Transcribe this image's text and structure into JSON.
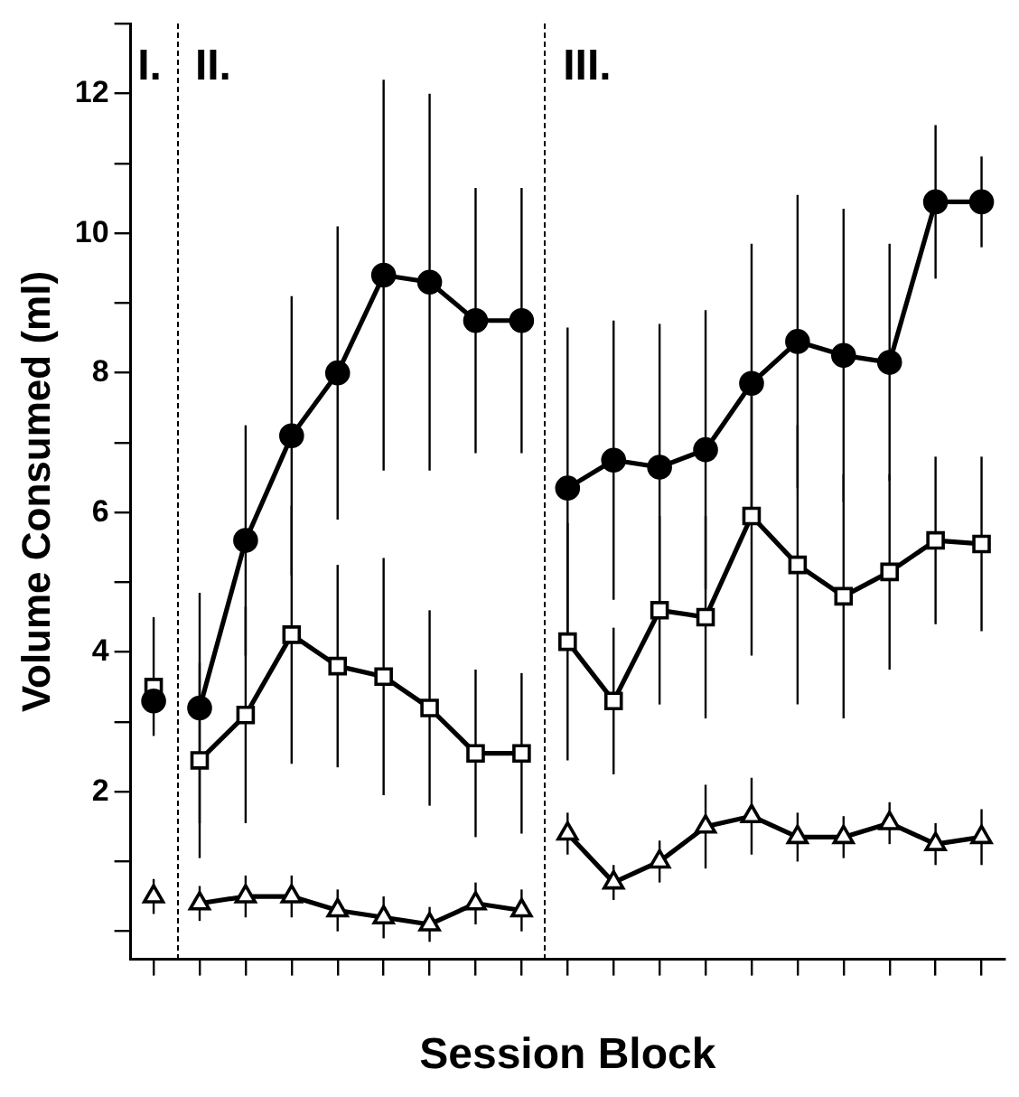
{
  "chart_data": {
    "type": "line",
    "xlabel": "Session Block",
    "ylabel": "Volume Consumed (ml)",
    "categories": [
      null,
      null,
      null,
      null,
      null,
      null,
      null,
      null,
      null,
      null,
      null,
      null,
      null,
      null,
      null,
      null,
      null,
      null,
      null
    ],
    "ylim": [
      -0.4,
      13
    ],
    "yticks": [
      {
        "value": 0,
        "label": null
      },
      {
        "value": 1,
        "label": null
      },
      2,
      {
        "value": 3,
        "label": null
      },
      4,
      {
        "value": 5,
        "label": null
      },
      6,
      {
        "value": 7,
        "label": null
      },
      8,
      {
        "value": 9,
        "label": null
      },
      10,
      {
        "value": 11,
        "label": null
      },
      12,
      {
        "value": 13,
        "label": null
      }
    ],
    "grid": false,
    "legend": false,
    "line_style": "solid",
    "series": [
      {
        "color": "#000000",
        "marker": "circle",
        "values": [
          3.3,
          null,
          null,
          null,
          null,
          null,
          null,
          null,
          null,
          null,
          null,
          null,
          null,
          null,
          null,
          null,
          null,
          null,
          null
        ],
        "errors": [
          null,
          null,
          null,
          null,
          null,
          null,
          null,
          null,
          null,
          null,
          null,
          null,
          null,
          null,
          null,
          null,
          null,
          null,
          null
        ]
      },
      {
        "color": "#000000",
        "marker": "circle",
        "values": [
          null,
          3.2,
          5.6,
          7.1,
          8.0,
          9.4,
          9.3,
          8.75,
          8.75,
          null,
          null,
          null,
          null,
          null,
          null,
          null,
          null,
          null,
          null
        ],
        "errors": [
          null,
          1.65,
          1.65,
          2.0,
          2.1,
          2.8,
          2.7,
          1.9,
          1.9,
          null,
          null,
          null,
          null,
          null,
          null,
          null,
          null,
          null,
          null
        ]
      },
      {
        "color": "#000000",
        "marker": "circle",
        "values": [
          null,
          null,
          null,
          null,
          null,
          null,
          null,
          null,
          null,
          6.35,
          6.75,
          6.65,
          6.9,
          7.85,
          8.45,
          8.25,
          8.15,
          10.45,
          10.45
        ],
        "errors": [
          null,
          null,
          null,
          null,
          null,
          null,
          null,
          null,
          null,
          2.3,
          2.0,
          2.05,
          2.0,
          2.0,
          2.1,
          2.1,
          1.7,
          1.1,
          0.65
        ]
      },
      {
        "color": "#000000",
        "marker": "square",
        "values": [
          3.5,
          null,
          null,
          null,
          null,
          null,
          null,
          null,
          null,
          null,
          null,
          null,
          null,
          null,
          null,
          null,
          null,
          null,
          null
        ],
        "errors": [
          [
            2.8,
            4.5
          ],
          null,
          null,
          null,
          null,
          null,
          null,
          null,
          null,
          null,
          null,
          null,
          null,
          null,
          null,
          null,
          null,
          null,
          null
        ]
      },
      {
        "color": "#000000",
        "marker": "square",
        "values": [
          null,
          2.45,
          3.1,
          4.25,
          3.8,
          3.65,
          3.2,
          2.55,
          2.55,
          null,
          null,
          null,
          null,
          null,
          null,
          null,
          null,
          null,
          null
        ],
        "errors": [
          null,
          1.4,
          1.55,
          1.85,
          1.45,
          1.7,
          1.4,
          1.2,
          1.15,
          null,
          null,
          null,
          null,
          null,
          null,
          null,
          null,
          null,
          null
        ]
      },
      {
        "color": "#000000",
        "marker": "square",
        "values": [
          null,
          null,
          null,
          null,
          null,
          null,
          null,
          null,
          null,
          4.15,
          3.3,
          4.6,
          4.5,
          5.95,
          5.25,
          4.8,
          5.15,
          5.6,
          5.55
        ],
        "errors": [
          null,
          null,
          null,
          null,
          null,
          null,
          null,
          null,
          null,
          1.7,
          1.05,
          1.35,
          1.45,
          2.0,
          2.0,
          1.75,
          1.4,
          1.2,
          1.25
        ]
      },
      {
        "color": "#000000",
        "marker": "triangle",
        "values": [
          0.5,
          null,
          null,
          null,
          null,
          null,
          null,
          null,
          null,
          null,
          null,
          null,
          null,
          null,
          null,
          null,
          null,
          null,
          null
        ],
        "errors": [
          0.25,
          null,
          null,
          null,
          null,
          null,
          null,
          null,
          null,
          null,
          null,
          null,
          null,
          null,
          null,
          null,
          null,
          null,
          null
        ]
      },
      {
        "color": "#000000",
        "marker": "triangle",
        "values": [
          null,
          0.4,
          0.5,
          0.5,
          0.3,
          0.2,
          0.1,
          0.4,
          0.3,
          null,
          null,
          null,
          null,
          null,
          null,
          null,
          null,
          null,
          null
        ],
        "errors": [
          null,
          0.25,
          0.3,
          0.3,
          0.3,
          0.3,
          0.25,
          0.3,
          0.3,
          null,
          null,
          null,
          null,
          null,
          null,
          null,
          null,
          null,
          null
        ]
      },
      {
        "color": "#000000",
        "marker": "triangle",
        "values": [
          null,
          null,
          null,
          null,
          null,
          null,
          null,
          null,
          null,
          1.4,
          0.7,
          1.0,
          1.5,
          1.65,
          1.35,
          1.35,
          1.55,
          1.25,
          1.35
        ],
        "errors": [
          null,
          null,
          null,
          null,
          null,
          null,
          null,
          null,
          null,
          0.3,
          0.25,
          0.3,
          0.6,
          0.55,
          0.35,
          0.3,
          0.3,
          0.3,
          0.4
        ]
      }
    ],
    "annotations": [
      "I.",
      "II.",
      "III."
    ]
  }
}
